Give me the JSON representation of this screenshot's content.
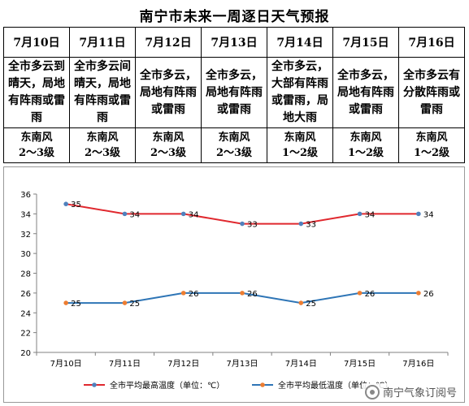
{
  "title": "南宁市未来一周逐日天气预报",
  "forecast": [
    {
      "date": "7月10日",
      "weather": "全市多云到晴天，局地有阵雨或雷雨",
      "wind_dir": "东南风",
      "wind_level": "2～3级"
    },
    {
      "date": "7月11日",
      "weather": "全市多云间晴天，局地有阵雨或雷雨",
      "wind_dir": "东南风",
      "wind_level": "2～3级"
    },
    {
      "date": "7月12日",
      "weather": "全市多云，局地有阵雨或雷雨",
      "wind_dir": "东南风",
      "wind_level": "2～3级"
    },
    {
      "date": "7月13日",
      "weather": "全市多云，局地有阵雨或雷雨",
      "wind_dir": "东南风",
      "wind_level": "2～3级"
    },
    {
      "date": "7月14日",
      "weather": "全市多云，大部有阵雨或雷雨，局地大雨",
      "wind_dir": "东南风",
      "wind_level": "1～2级"
    },
    {
      "date": "7月15日",
      "weather": "全市多云，局地有阵雨或雷雨",
      "wind_dir": "东南风",
      "wind_level": "1～2级"
    },
    {
      "date": "7月16日",
      "weather": "全市多云有分散阵雨或雷雨",
      "wind_dir": "东南风",
      "wind_level": "1～2级"
    }
  ],
  "chart_data": {
    "type": "line",
    "categories": [
      "7月10日",
      "7月11日",
      "7月12日",
      "7月13日",
      "7月14日",
      "7月15日",
      "7月16日"
    ],
    "series": [
      {
        "name": "全市平均最高温度（单位：℃）",
        "values": [
          35,
          34,
          34,
          33,
          33,
          34,
          34
        ],
        "color": "#e0282e",
        "marker_color": "#4f81bd"
      },
      {
        "name": "全市平均最低温度（单位：℃）",
        "values": [
          25,
          25,
          26,
          26,
          25,
          26,
          26
        ],
        "color": "#2e75b6",
        "marker_color": "#ed7d31"
      }
    ],
    "ylim": [
      20,
      36
    ],
    "yticks": [
      20,
      22,
      24,
      26,
      28,
      30,
      32,
      34,
      36
    ],
    "grid": false,
    "legend_position": "bottom"
  },
  "watermark": "南宁气象订阅号"
}
